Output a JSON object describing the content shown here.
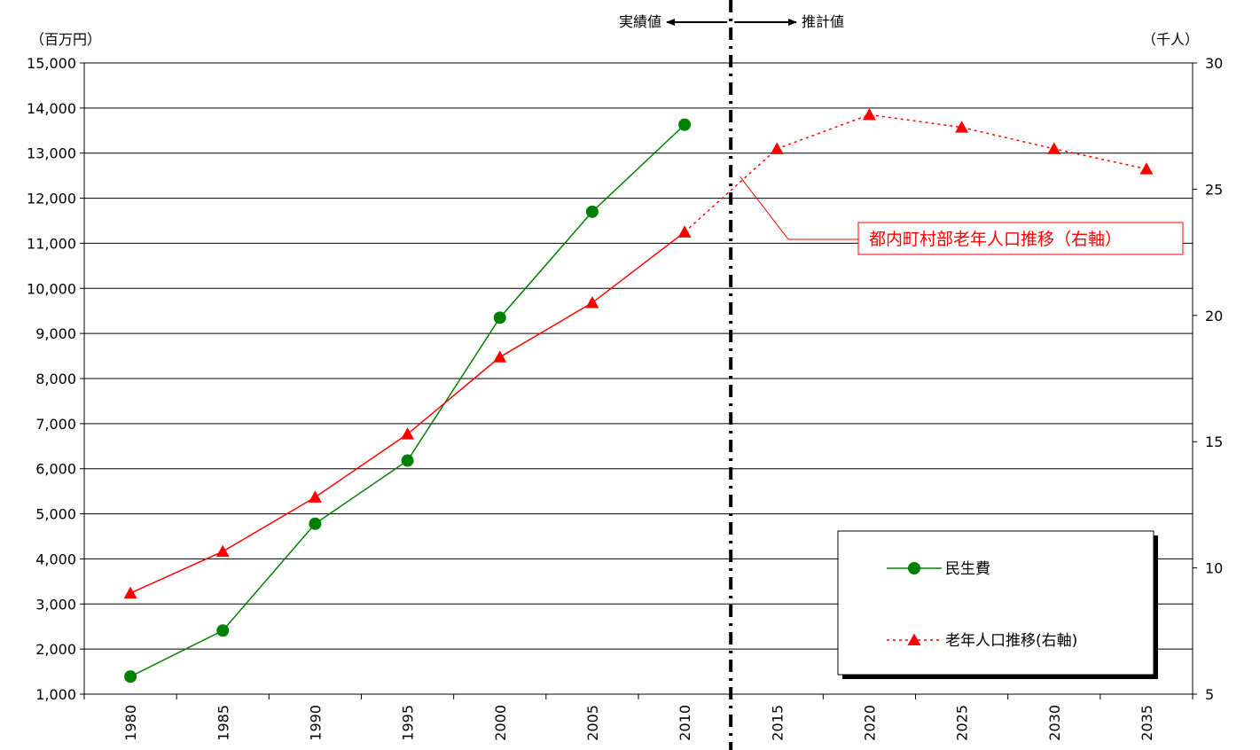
{
  "chart_data": {
    "type": "line",
    "y_left_unit": "（百万円）",
    "y_right_unit": "（千人）",
    "categories": [
      "1980",
      "1985",
      "1990",
      "1995",
      "2000",
      "2005",
      "2010",
      "2015",
      "2020",
      "2025",
      "2030",
      "2035"
    ],
    "y_left_ticks": [
      "1,000",
      "2,000",
      "3,000",
      "4,000",
      "5,000",
      "6,000",
      "7,000",
      "8,000",
      "9,000",
      "10,000",
      "11,000",
      "12,000",
      "13,000",
      "14,000",
      "15,000"
    ],
    "y_right_ticks": [
      "5",
      "10",
      "15",
      "20",
      "25",
      "30"
    ],
    "ylim_left": [
      1000,
      15000
    ],
    "ylim_right": [
      5,
      30
    ],
    "grid": true,
    "divider_after": "2010",
    "actual_label": "実績値",
    "forecast_label": "推計値",
    "series": [
      {
        "name": "民生費",
        "axis": "left",
        "color": "#008000",
        "marker": "circle",
        "line_style": "solid",
        "x": [
          "1980",
          "1985",
          "1990",
          "1995",
          "2000",
          "2005",
          "2010"
        ],
        "values": [
          1390,
          2410,
          4780,
          6180,
          9350,
          11700,
          13630
        ]
      },
      {
        "name": "老年人口推移(右軸)",
        "axis": "right",
        "color": "#ff0000",
        "marker": "triangle",
        "line_style": "solid-then-dotted",
        "x": [
          "1980",
          "1985",
          "1990",
          "1995",
          "2000",
          "2005",
          "2010",
          "2015",
          "2020",
          "2025",
          "2030",
          "2035"
        ],
        "values": [
          9.0,
          10.65,
          12.8,
          15.3,
          18.35,
          20.5,
          23.3,
          26.6,
          27.95,
          27.45,
          26.6,
          25.8
        ]
      }
    ],
    "annotation": {
      "text": "都内町村部老年人口推移（右軸）",
      "color": "#ff0000",
      "x": 2013,
      "y": 25.5
    },
    "legend_position": "bottom-right"
  }
}
